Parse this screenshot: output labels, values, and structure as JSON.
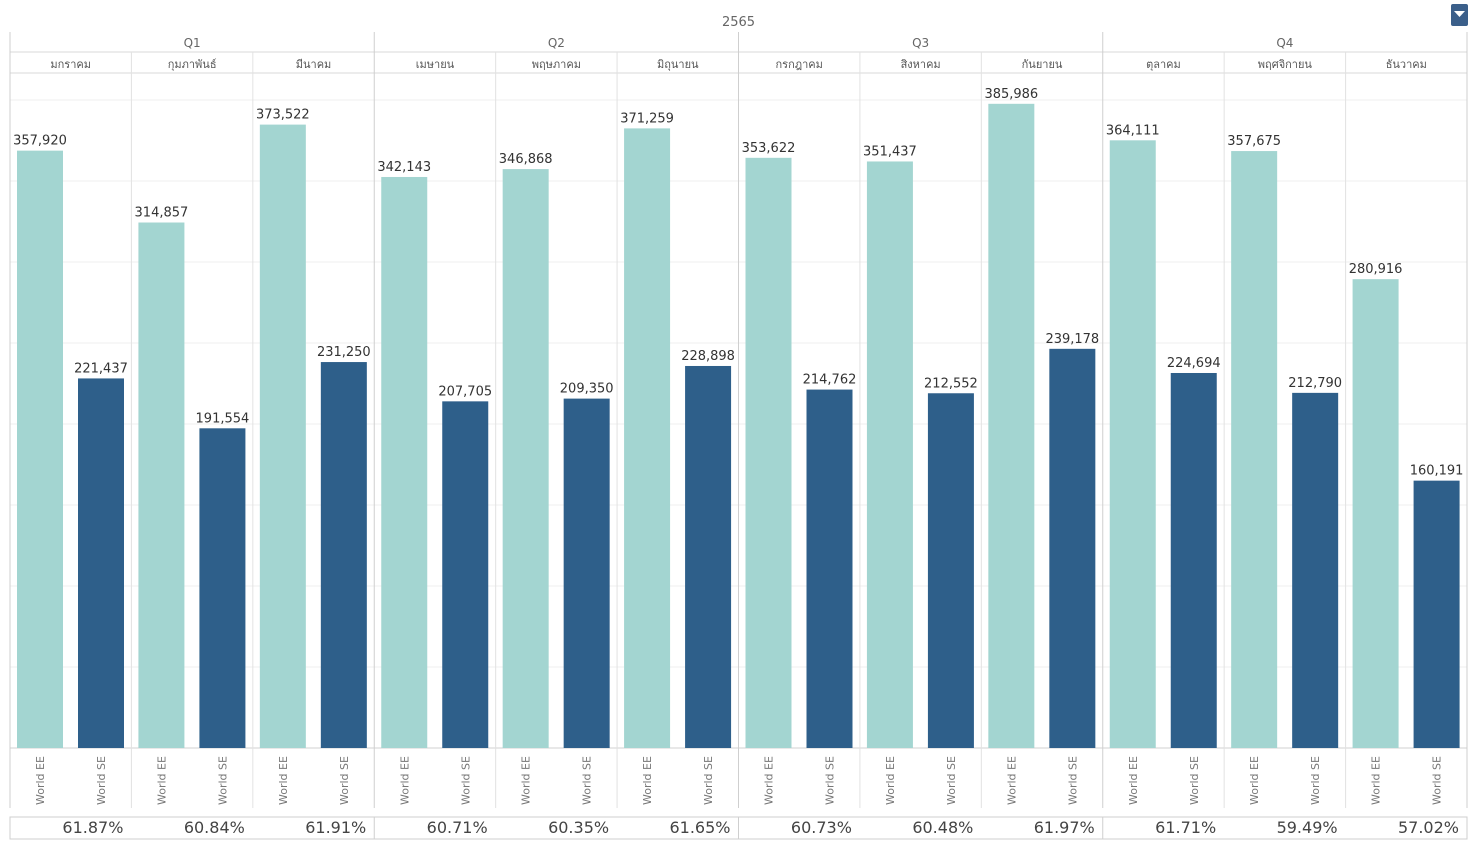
{
  "chart_data": {
    "type": "bar",
    "year": "2565",
    "quarters": [
      "Q1",
      "Q2",
      "Q3",
      "Q4"
    ],
    "categories": [
      "มกราคม",
      "กุมภาพันธ์",
      "มีนาคม",
      "เมษายน",
      "พฤษภาคม",
      "มิถุนายน",
      "กรกฎาคม",
      "สิงหาคม",
      "กันยายน",
      "ตุลาคม",
      "พฤศจิกายน",
      "ธันวาคม"
    ],
    "series": [
      {
        "name": "World EE",
        "color": "#a3d5d1",
        "values": [
          357920,
          314857,
          373522,
          342143,
          346868,
          371259,
          353622,
          351437,
          385986,
          364111,
          357675,
          280916
        ],
        "labels": [
          "357,920",
          "314,857",
          "373,522",
          "342,143",
          "346,868",
          "371,259",
          "353,622",
          "351,437",
          "385,986",
          "364,111",
          "357,675",
          "280,916"
        ]
      },
      {
        "name": "World SE",
        "color": "#2e5f8a",
        "values": [
          221437,
          191554,
          231250,
          207705,
          209350,
          228898,
          214762,
          212552,
          239178,
          224694,
          212790,
          160191
        ],
        "labels": [
          "221,437",
          "191,554",
          "231,250",
          "207,705",
          "209,350",
          "228,898",
          "214,762",
          "212,552",
          "239,178",
          "224,694",
          "212,790",
          "160,191"
        ]
      }
    ],
    "percentages": [
      "61.87%",
      "60.84%",
      "61.91%",
      "60.71%",
      "60.35%",
      "61.65%",
      "60.73%",
      "60.48%",
      "61.97%",
      "61.71%",
      "59.49%",
      "57.02%"
    ],
    "ylim": [
      0,
      420000
    ],
    "grid": true,
    "xlabel": "",
    "ylabel": ""
  },
  "menu_icon": "dropdown-arrow-icon"
}
